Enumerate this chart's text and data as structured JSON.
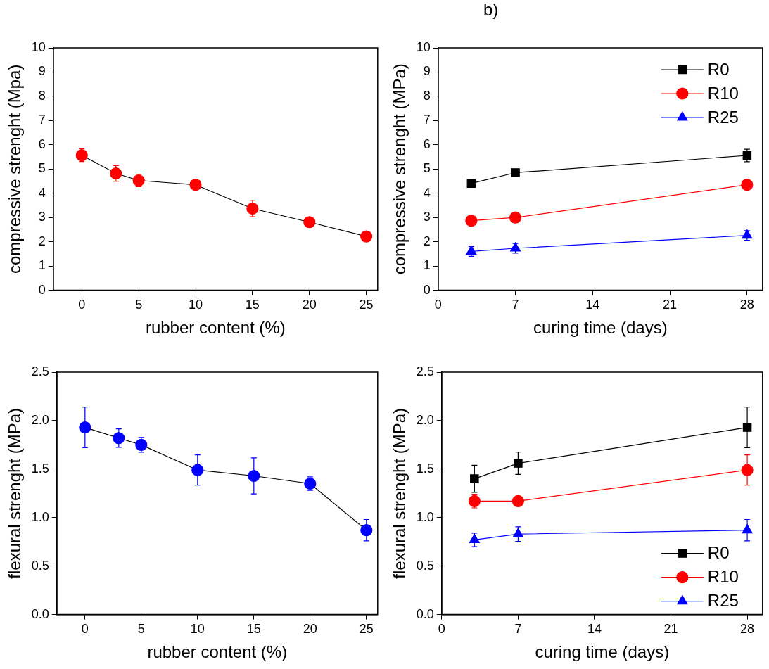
{
  "chart_data": [
    {
      "type": "line",
      "xlabel": "rubber content (%)",
      "ylabel": "compressive strenght (Mpa)",
      "x": [
        0,
        3,
        5,
        10,
        15,
        20,
        25
      ],
      "values": [
        5.57,
        4.82,
        4.53,
        4.35,
        3.37,
        2.81,
        2.22
      ],
      "errors": [
        0.26,
        0.32,
        0.26,
        null,
        0.34,
        null,
        null
      ],
      "color": "#ff0000",
      "marker": "circle",
      "xlim": [
        -2.5,
        26
      ],
      "xticks": [
        0,
        5,
        10,
        15,
        20,
        25
      ],
      "ylim": [
        0,
        10
      ],
      "yticks": [
        0,
        1,
        2,
        3,
        4,
        5,
        6,
        7,
        8,
        9,
        10
      ],
      "grid": false,
      "legend": false
    },
    {
      "type": "line",
      "annotations": [
        "b)"
      ],
      "xlabel": "curing time (days)",
      "ylabel": "compressive strenght (MPa)",
      "x": [
        3,
        7,
        28
      ],
      "series": [
        {
          "name": "R0",
          "color": "#000000",
          "marker": "square",
          "values": [
            4.41,
            4.85,
            5.56
          ],
          "errors": [
            0.15,
            null,
            0.26
          ]
        },
        {
          "name": "R10",
          "color": "#ff0000",
          "marker": "circle",
          "values": [
            2.87,
            3.0,
            4.35
          ],
          "errors": [
            null,
            0.2,
            null
          ]
        },
        {
          "name": "R25",
          "color": "#0000ff",
          "marker": "triangle",
          "values": [
            1.6,
            1.73,
            2.26
          ],
          "errors": [
            0.2,
            0.2,
            0.2
          ]
        }
      ],
      "xlim": [
        0,
        29.4
      ],
      "xticks": [
        0,
        7,
        14,
        21,
        28
      ],
      "ylim": [
        0,
        10
      ],
      "yticks": [
        0,
        1,
        2,
        3,
        4,
        5,
        6,
        7,
        8,
        9,
        10
      ],
      "grid": false,
      "legend": "top right"
    },
    {
      "type": "line",
      "xlabel": "rubber content (%)",
      "ylabel": "flexural strenght (MPa)",
      "x": [
        0,
        3,
        5,
        10,
        15,
        20,
        25
      ],
      "values": [
        1.93,
        1.82,
        1.75,
        1.49,
        1.43,
        1.35,
        0.87
      ],
      "errors": [
        0.21,
        0.095,
        0.077,
        0.156,
        0.186,
        0.07,
        0.11
      ],
      "color": "#0000ff",
      "marker": "circle",
      "xlim": [
        -2.5,
        26
      ],
      "xticks": [
        0,
        5,
        10,
        15,
        20,
        25
      ],
      "ylim": [
        0,
        2.5
      ],
      "yticks": [
        {
          "value": 0,
          "label": "0.0"
        },
        {
          "value": 0.5,
          "label": "0.5"
        },
        {
          "value": 1,
          "label": "1.0"
        },
        {
          "value": 1.5,
          "label": "1.5"
        },
        {
          "value": 2,
          "label": "2.0"
        },
        {
          "value": 2.5,
          "label": "2.5"
        }
      ],
      "grid": false,
      "legend": false
    },
    {
      "type": "line",
      "xlabel": "curing time (days)",
      "ylabel": "flexural strenght (MPa)",
      "x": [
        3,
        7,
        28
      ],
      "series": [
        {
          "name": "R0",
          "color": "#000000",
          "marker": "square",
          "values": [
            1.4,
            1.56,
            1.93
          ],
          "errors": [
            0.14,
            0.115,
            0.21
          ]
        },
        {
          "name": "R10",
          "color": "#ff0000",
          "marker": "circle",
          "values": [
            1.17,
            1.17,
            1.49
          ],
          "errors": [
            0.07,
            null,
            0.156
          ]
        },
        {
          "name": "R25",
          "color": "#0000ff",
          "marker": "triangle",
          "values": [
            0.77,
            0.83,
            0.87
          ],
          "errors": [
            0.07,
            0.075,
            0.11
          ]
        }
      ],
      "xlim": [
        0,
        29.4
      ],
      "xticks": [
        0,
        7,
        14,
        21,
        28
      ],
      "ylim": [
        0,
        2.5
      ],
      "yticks": [
        {
          "value": 0,
          "label": "0.0"
        },
        {
          "value": 0.5,
          "label": "0.5"
        },
        {
          "value": 1,
          "label": "1.0"
        },
        {
          "value": 1.5,
          "label": "1.5"
        },
        {
          "value": 2,
          "label": "2.0"
        },
        {
          "value": 2.5,
          "label": "2.5"
        }
      ],
      "grid": false,
      "legend": "bottom right"
    }
  ]
}
